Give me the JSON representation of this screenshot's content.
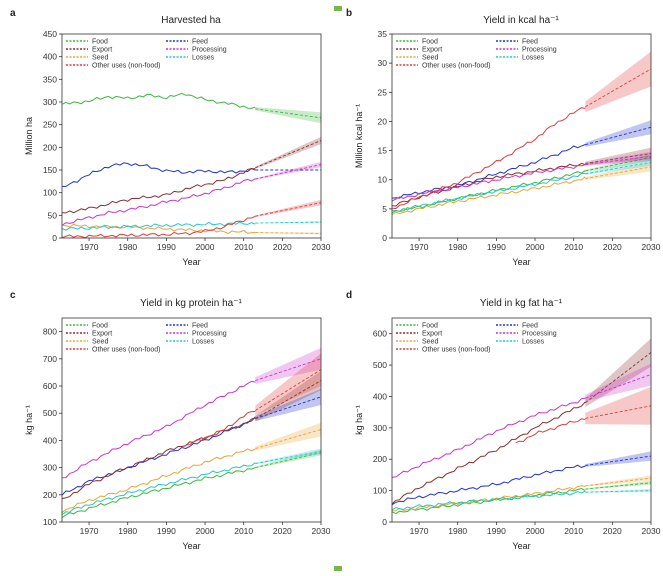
{
  "colors": {
    "Food": "#3cb83c",
    "Feed": "#2233cc",
    "Export": "#8b2f2f",
    "Processing": "#cc33cc",
    "Seed": "#e6a533",
    "Losses": "#22c8c8",
    "Other uses (non-food)": "#e03a3a"
  },
  "chart_data": [
    {
      "panel": "a",
      "type": "line",
      "title": "Harvested ha",
      "xlabel": "Year",
      "ylabel": "Million ha",
      "xlim": [
        1963,
        2030
      ],
      "ylim": [
        0,
        450
      ],
      "xticks": [
        "1970",
        "1980",
        "1990",
        "2000",
        "2010",
        "2020",
        "2030"
      ],
      "yticks": [
        "0",
        "50",
        "100",
        "150",
        "200",
        "250",
        "300",
        "350",
        "400",
        "450"
      ],
      "legend": [
        "Food",
        "Export",
        "Seed",
        "Other uses (non-food)",
        "Feed",
        "Processing",
        "Losses"
      ],
      "series": [
        {
          "name": "Food",
          "x": [
            1963,
            1970,
            1975,
            1980,
            1985,
            1990,
            1995,
            2000,
            2005,
            2010,
            2013
          ],
          "y": [
            295,
            302,
            312,
            308,
            315,
            310,
            318,
            305,
            298,
            290,
            285
          ],
          "proj": [
            285,
            265
          ],
          "band": 12
        },
        {
          "name": "Feed",
          "x": [
            1963,
            1970,
            1975,
            1980,
            1985,
            1990,
            1995,
            2000,
            2005,
            2010,
            2013
          ],
          "y": [
            110,
            140,
            158,
            165,
            158,
            148,
            145,
            148,
            145,
            148,
            150
          ],
          "proj": [
            150,
            150
          ],
          "band": 0
        },
        {
          "name": "Export",
          "x": [
            1963,
            1970,
            1975,
            1980,
            1985,
            1990,
            1995,
            2000,
            2005,
            2010,
            2013
          ],
          "y": [
            55,
            65,
            75,
            85,
            90,
            95,
            108,
            118,
            128,
            145,
            155
          ],
          "proj": [
            155,
            215
          ],
          "band": 8
        },
        {
          "name": "Processing",
          "x": [
            1963,
            1970,
            1975,
            1980,
            1985,
            1990,
            1995,
            2000,
            2005,
            2010,
            2013
          ],
          "y": [
            30,
            45,
            55,
            62,
            70,
            80,
            88,
            98,
            110,
            125,
            130
          ],
          "proj": [
            130,
            162
          ],
          "band": 6
        },
        {
          "name": "Seed",
          "x": [
            1963,
            1970,
            1975,
            1980,
            1985,
            1990,
            1995,
            2000,
            2005,
            2010,
            2013
          ],
          "y": [
            28,
            26,
            25,
            24,
            22,
            20,
            18,
            16,
            14,
            13,
            12
          ],
          "proj": [
            12,
            10
          ],
          "band": 2
        },
        {
          "name": "Losses",
          "x": [
            1963,
            1970,
            1975,
            1980,
            1985,
            1990,
            1995,
            2000,
            2005,
            2010,
            2013
          ],
          "y": [
            20,
            22,
            24,
            25,
            27,
            28,
            29,
            30,
            31,
            32,
            33
          ],
          "proj": [
            33,
            35
          ],
          "band": 2
        },
        {
          "name": "Other uses (non-food)",
          "x": [
            1963,
            1970,
            1975,
            1980,
            1985,
            1990,
            1995,
            2000,
            2005,
            2010,
            2013
          ],
          "y": [
            3,
            4,
            5,
            6,
            7,
            8,
            10,
            15,
            25,
            40,
            48
          ],
          "proj": [
            48,
            78
          ],
          "band": 6
        }
      ]
    },
    {
      "panel": "b",
      "type": "line",
      "title": "Yield in kcal ha⁻¹",
      "xlabel": "Year",
      "ylabel": "Million kcal ha⁻¹",
      "xlim": [
        1963,
        2030
      ],
      "ylim": [
        0,
        35
      ],
      "xticks": [
        "1970",
        "1980",
        "1990",
        "2000",
        "2010",
        "2020",
        "2030"
      ],
      "yticks": [
        "0",
        "5",
        "10",
        "15",
        "20",
        "25",
        "30",
        "35"
      ],
      "legend": [
        "Food",
        "Export",
        "Seed",
        "Other uses (non-food)",
        "Feed",
        "Processing",
        "Losses"
      ],
      "series": [
        {
          "name": "Food",
          "x": [
            1963,
            1970,
            1980,
            1990,
            2000,
            2010,
            2013
          ],
          "y": [
            4.5,
            5.3,
            6.8,
            8.2,
            9.5,
            11.0,
            11.5
          ],
          "proj": [
            11.5,
            13.8
          ],
          "band": 0.6
        },
        {
          "name": "Feed",
          "x": [
            1963,
            1970,
            1980,
            1990,
            2000,
            2010,
            2013
          ],
          "y": [
            6.8,
            7.8,
            9.0,
            11.0,
            13.0,
            15.5,
            16.0
          ],
          "proj": [
            16.0,
            19.0
          ],
          "band": 1.2
        },
        {
          "name": "Export",
          "x": [
            1963,
            1970,
            1980,
            1990,
            2000,
            2010,
            2013
          ],
          "y": [
            5.5,
            7.0,
            8.8,
            10.5,
            11.5,
            12.5,
            12.8
          ],
          "proj": [
            12.8,
            14.5
          ],
          "band": 1.0
        },
        {
          "name": "Processing",
          "x": [
            1963,
            1970,
            1980,
            1990,
            2000,
            2010,
            2013
          ],
          "y": [
            6.5,
            7.5,
            8.7,
            10.0,
            11.2,
            12.2,
            12.6
          ],
          "proj": [
            12.6,
            14.0
          ],
          "band": 0.8
        },
        {
          "name": "Seed",
          "x": [
            1963,
            1970,
            1980,
            1990,
            2000,
            2010,
            2013
          ],
          "y": [
            4.0,
            5.0,
            6.3,
            7.4,
            8.5,
            9.8,
            10.2
          ],
          "proj": [
            10.2,
            12.2
          ],
          "band": 0.8
        },
        {
          "name": "Losses",
          "x": [
            1963,
            1970,
            1980,
            1990,
            2000,
            2010,
            2013
          ],
          "y": [
            4.5,
            5.5,
            6.8,
            8.0,
            9.2,
            10.5,
            11.0
          ],
          "proj": [
            11.0,
            13.0
          ],
          "band": 0.6
        },
        {
          "name": "Other uses (non-food)",
          "x": [
            1963,
            1970,
            1980,
            1990,
            2000,
            2005,
            2010,
            2013
          ],
          "y": [
            5.0,
            7.0,
            9.5,
            13.0,
            17.0,
            19.5,
            21.5,
            22.5
          ],
          "proj": [
            22.5,
            29.0
          ],
          "band": 3.0
        }
      ]
    },
    {
      "panel": "c",
      "type": "line",
      "title": "Yield in kg protein ha⁻¹",
      "xlabel": "Year",
      "ylabel": "kg ha⁻¹",
      "xlim": [
        1963,
        2030
      ],
      "ylim": [
        100,
        850
      ],
      "xticks": [
        "1970",
        "1980",
        "1990",
        "2000",
        "2010",
        "2020",
        "2030"
      ],
      "yticks": [
        "100",
        "200",
        "300",
        "400",
        "500",
        "600",
        "700",
        "800"
      ],
      "legend": [
        "Food",
        "Export",
        "Seed",
        "Other uses (non-food)",
        "Feed",
        "Processing",
        "Losses"
      ],
      "series": [
        {
          "name": "Food",
          "x": [
            1963,
            1970,
            1980,
            1990,
            2000,
            2010,
            2013
          ],
          "y": [
            120,
            150,
            190,
            225,
            260,
            290,
            300
          ],
          "proj": [
            300,
            355
          ],
          "band": 10
        },
        {
          "name": "Feed",
          "x": [
            1963,
            1970,
            1980,
            1990,
            2000,
            2010,
            2013
          ],
          "y": [
            200,
            250,
            300,
            350,
            400,
            460,
            480
          ],
          "proj": [
            480,
            560
          ],
          "band": 30
        },
        {
          "name": "Export",
          "x": [
            1963,
            1970,
            1980,
            1990,
            2000,
            2010,
            2013
          ],
          "y": [
            180,
            240,
            300,
            360,
            410,
            460,
            480
          ],
          "proj": [
            480,
            620
          ],
          "band": 35
        },
        {
          "name": "Processing",
          "x": [
            1963,
            1970,
            1980,
            1990,
            2000,
            2010,
            2013
          ],
          "y": [
            260,
            320,
            390,
            450,
            530,
            600,
            620
          ],
          "proj": [
            620,
            700
          ],
          "band": 40
        },
        {
          "name": "Seed",
          "x": [
            1963,
            1970,
            1980,
            1990,
            2000,
            2010,
            2013
          ],
          "y": [
            140,
            180,
            220,
            270,
            320,
            360,
            370
          ],
          "proj": [
            370,
            440
          ],
          "band": 25
        },
        {
          "name": "Losses",
          "x": [
            1963,
            1970,
            1980,
            1990,
            2000,
            2010,
            2013
          ],
          "y": [
            130,
            165,
            205,
            240,
            275,
            305,
            315
          ],
          "proj": [
            315,
            360
          ],
          "band": 10
        },
        {
          "name": "Other uses (non-food)",
          "x": [
            1995,
            2000,
            2005,
            2010,
            2013
          ],
          "y": [
            380,
            410,
            440,
            490,
            510
          ],
          "proj": [
            510,
            660
          ],
          "band": 60
        }
      ]
    },
    {
      "panel": "d",
      "type": "line",
      "title": "Yield in kg fat ha⁻¹",
      "xlabel": "Year",
      "ylabel": "kg ha⁻¹",
      "xlim": [
        1963,
        2030
      ],
      "ylim": [
        0,
        650
      ],
      "xticks": [
        "1970",
        "1980",
        "1990",
        "2000",
        "2010",
        "2020",
        "2030"
      ],
      "yticks": [
        "0",
        "100",
        "200",
        "300",
        "400",
        "500",
        "600"
      ],
      "legend": [
        "Food",
        "Export",
        "Seed",
        "Other uses (non-food)",
        "Feed",
        "Processing",
        "Losses"
      ],
      "series": [
        {
          "name": "Food",
          "x": [
            1963,
            1970,
            1980,
            1990,
            2000,
            2010,
            2013
          ],
          "y": [
            30,
            40,
            55,
            70,
            85,
            100,
            105
          ],
          "proj": [
            105,
            125
          ],
          "band": 6
        },
        {
          "name": "Feed",
          "x": [
            1963,
            1970,
            1980,
            1990,
            2000,
            2010,
            2013
          ],
          "y": [
            60,
            80,
            100,
            120,
            150,
            175,
            180
          ],
          "proj": [
            180,
            210
          ],
          "band": 15
        },
        {
          "name": "Export",
          "x": [
            1963,
            1970,
            1980,
            1990,
            2000,
            2010,
            2013
          ],
          "y": [
            60,
            110,
            170,
            230,
            300,
            360,
            380
          ],
          "proj": [
            380,
            540
          ],
          "band": 45
        },
        {
          "name": "Processing",
          "x": [
            1963,
            1970,
            1980,
            1990,
            2000,
            2010,
            2013
          ],
          "y": [
            140,
            180,
            230,
            290,
            340,
            380,
            395
          ],
          "proj": [
            395,
            470
          ],
          "band": 35
        },
        {
          "name": "Seed",
          "x": [
            1963,
            1970,
            1980,
            1990,
            2000,
            2010,
            2013
          ],
          "y": [
            35,
            45,
            60,
            75,
            90,
            110,
            115
          ],
          "proj": [
            115,
            140
          ],
          "band": 8
        },
        {
          "name": "Losses",
          "x": [
            1963,
            1970,
            1980,
            1990,
            2000,
            2010,
            2013
          ],
          "y": [
            40,
            50,
            62,
            72,
            82,
            92,
            95
          ],
          "proj": [
            95,
            100
          ],
          "band": 5
        },
        {
          "name": "Other uses (non-food)",
          "x": [
            1995,
            2000,
            2005,
            2010,
            2013
          ],
          "y": [
            250,
            280,
            300,
            320,
            330
          ],
          "proj": [
            330,
            370
          ],
          "band": 60
        }
      ]
    }
  ]
}
